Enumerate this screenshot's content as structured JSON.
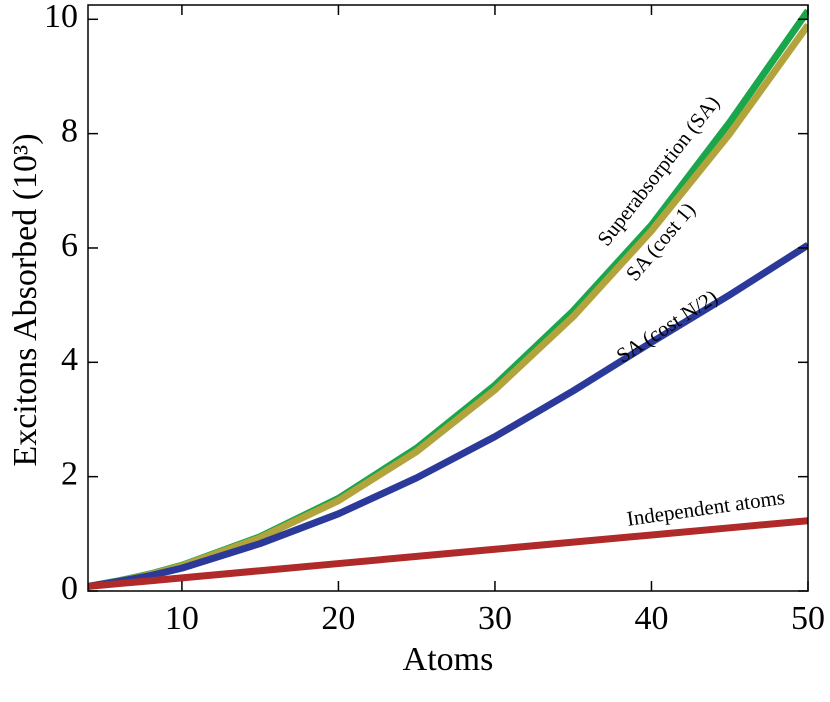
{
  "chart_data": {
    "type": "line",
    "x_label": "Atoms",
    "y_label": "Excitons Absorbed (10³)",
    "x": [
      4,
      6,
      8,
      10,
      15,
      20,
      25,
      30,
      35,
      40,
      45,
      50
    ],
    "series": [
      {
        "name": "Superabsorption (SA)",
        "color": "#1aa64a",
        "values": [
          0.08,
          0.18,
          0.3,
          0.45,
          0.95,
          1.62,
          2.5,
          3.6,
          4.9,
          6.4,
          8.2,
          10.15
        ]
      },
      {
        "name": "SA (cost 1)",
        "color": "#b3a33c",
        "values": [
          0.08,
          0.17,
          0.29,
          0.44,
          0.93,
          1.58,
          2.44,
          3.52,
          4.8,
          6.3,
          8.0,
          9.9
        ]
      },
      {
        "name": "SA (cost N/2)",
        "color": "#2b3a9a",
        "values": [
          0.08,
          0.17,
          0.27,
          0.4,
          0.83,
          1.35,
          1.98,
          2.7,
          3.5,
          4.35,
          5.18,
          6.05
        ]
      },
      {
        "name": "Independent atoms",
        "color": "#b02a2a",
        "values": [
          0.08,
          0.13,
          0.18,
          0.23,
          0.355,
          0.48,
          0.605,
          0.73,
          0.855,
          0.98,
          1.105,
          1.23
        ]
      }
    ],
    "xlim": [
      4,
      50
    ],
    "xticks": [
      10,
      20,
      30,
      40,
      50
    ],
    "ylim": [
      0,
      10.25
    ],
    "yticks": [
      0,
      2,
      4,
      6,
      8,
      10
    ]
  }
}
